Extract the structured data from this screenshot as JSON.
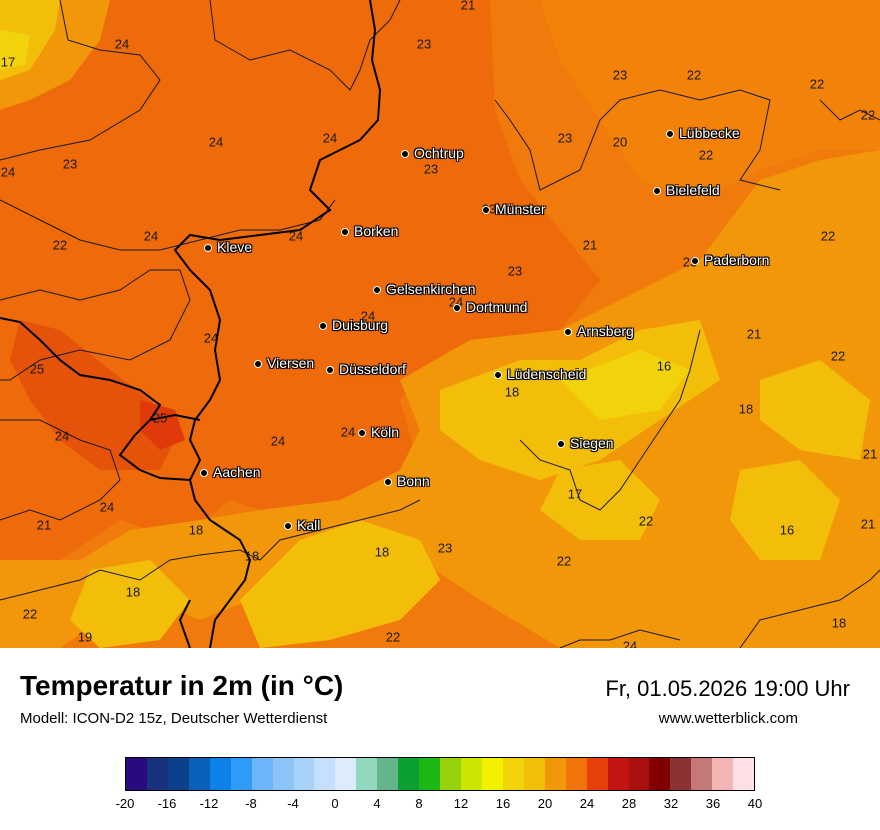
{
  "header": {
    "title": "Temperatur in 2m (in °C)",
    "model": "Modell: ICON-D2 15z, Deutscher Wetterdienst",
    "datetime": "Fr, 01.05.2026 19:00 Uhr",
    "website": "www.wetterblick.com"
  },
  "cities": [
    {
      "name": "Ochtrup"
    },
    {
      "name": "Lübbecke"
    },
    {
      "name": "Bielefeld"
    },
    {
      "name": "Münster"
    },
    {
      "name": "Borken"
    },
    {
      "name": "Kleve"
    },
    {
      "name": "Paderborn"
    },
    {
      "name": "Gelsenkirchen"
    },
    {
      "name": "Dortmund"
    },
    {
      "name": "Duisburg"
    },
    {
      "name": "Arnsberg"
    },
    {
      "name": "Viersen"
    },
    {
      "name": "Düsseldorf"
    },
    {
      "name": "Lüdenscheid"
    },
    {
      "name": "Köln"
    },
    {
      "name": "Siegen"
    },
    {
      "name": "Aachen"
    },
    {
      "name": "Bonn"
    },
    {
      "name": "Kall"
    }
  ],
  "values": [
    "21",
    "23",
    "24",
    "17",
    "23",
    "22",
    "22",
    "22",
    "24",
    "23",
    "20",
    "22",
    "24",
    "23",
    "23",
    "24",
    "21",
    "22",
    "24",
    "24",
    "22",
    "23",
    "21",
    "23",
    "24",
    "24",
    "23",
    "24",
    "21",
    "22",
    "16",
    "25",
    "25",
    "18",
    "18",
    "24",
    "24",
    "24",
    "21",
    "17",
    "22",
    "24",
    "18",
    "18",
    "16",
    "21",
    "23",
    "18",
    "22",
    "18",
    "22",
    "19",
    "22",
    "18",
    "24"
  ],
  "legend": {
    "colors": [
      "#2a0a7e",
      "#18327e",
      "#0c408c",
      "#0a5fb8",
      "#0a82e8",
      "#2e9cf6",
      "#6ab6f8",
      "#8cc4f8",
      "#a8d2fa",
      "#c4e0fc",
      "#dcecfc",
      "#92d8be",
      "#64b48c",
      "#0aa032",
      "#1eb814",
      "#96d20a",
      "#cce600",
      "#f2f200",
      "#f2d20a",
      "#f2be0a",
      "#f2960a",
      "#f2740a",
      "#e8400a",
      "#c41414",
      "#aa1010",
      "#820000",
      "#8c3232",
      "#c47878",
      "#f4b4b4",
      "#fce0e6"
    ],
    "ticks": [
      "-20",
      "-16",
      "-12",
      "-8",
      "-4",
      "0",
      "4",
      "8",
      "12",
      "16",
      "20",
      "24",
      "28",
      "32",
      "36",
      "40"
    ]
  }
}
